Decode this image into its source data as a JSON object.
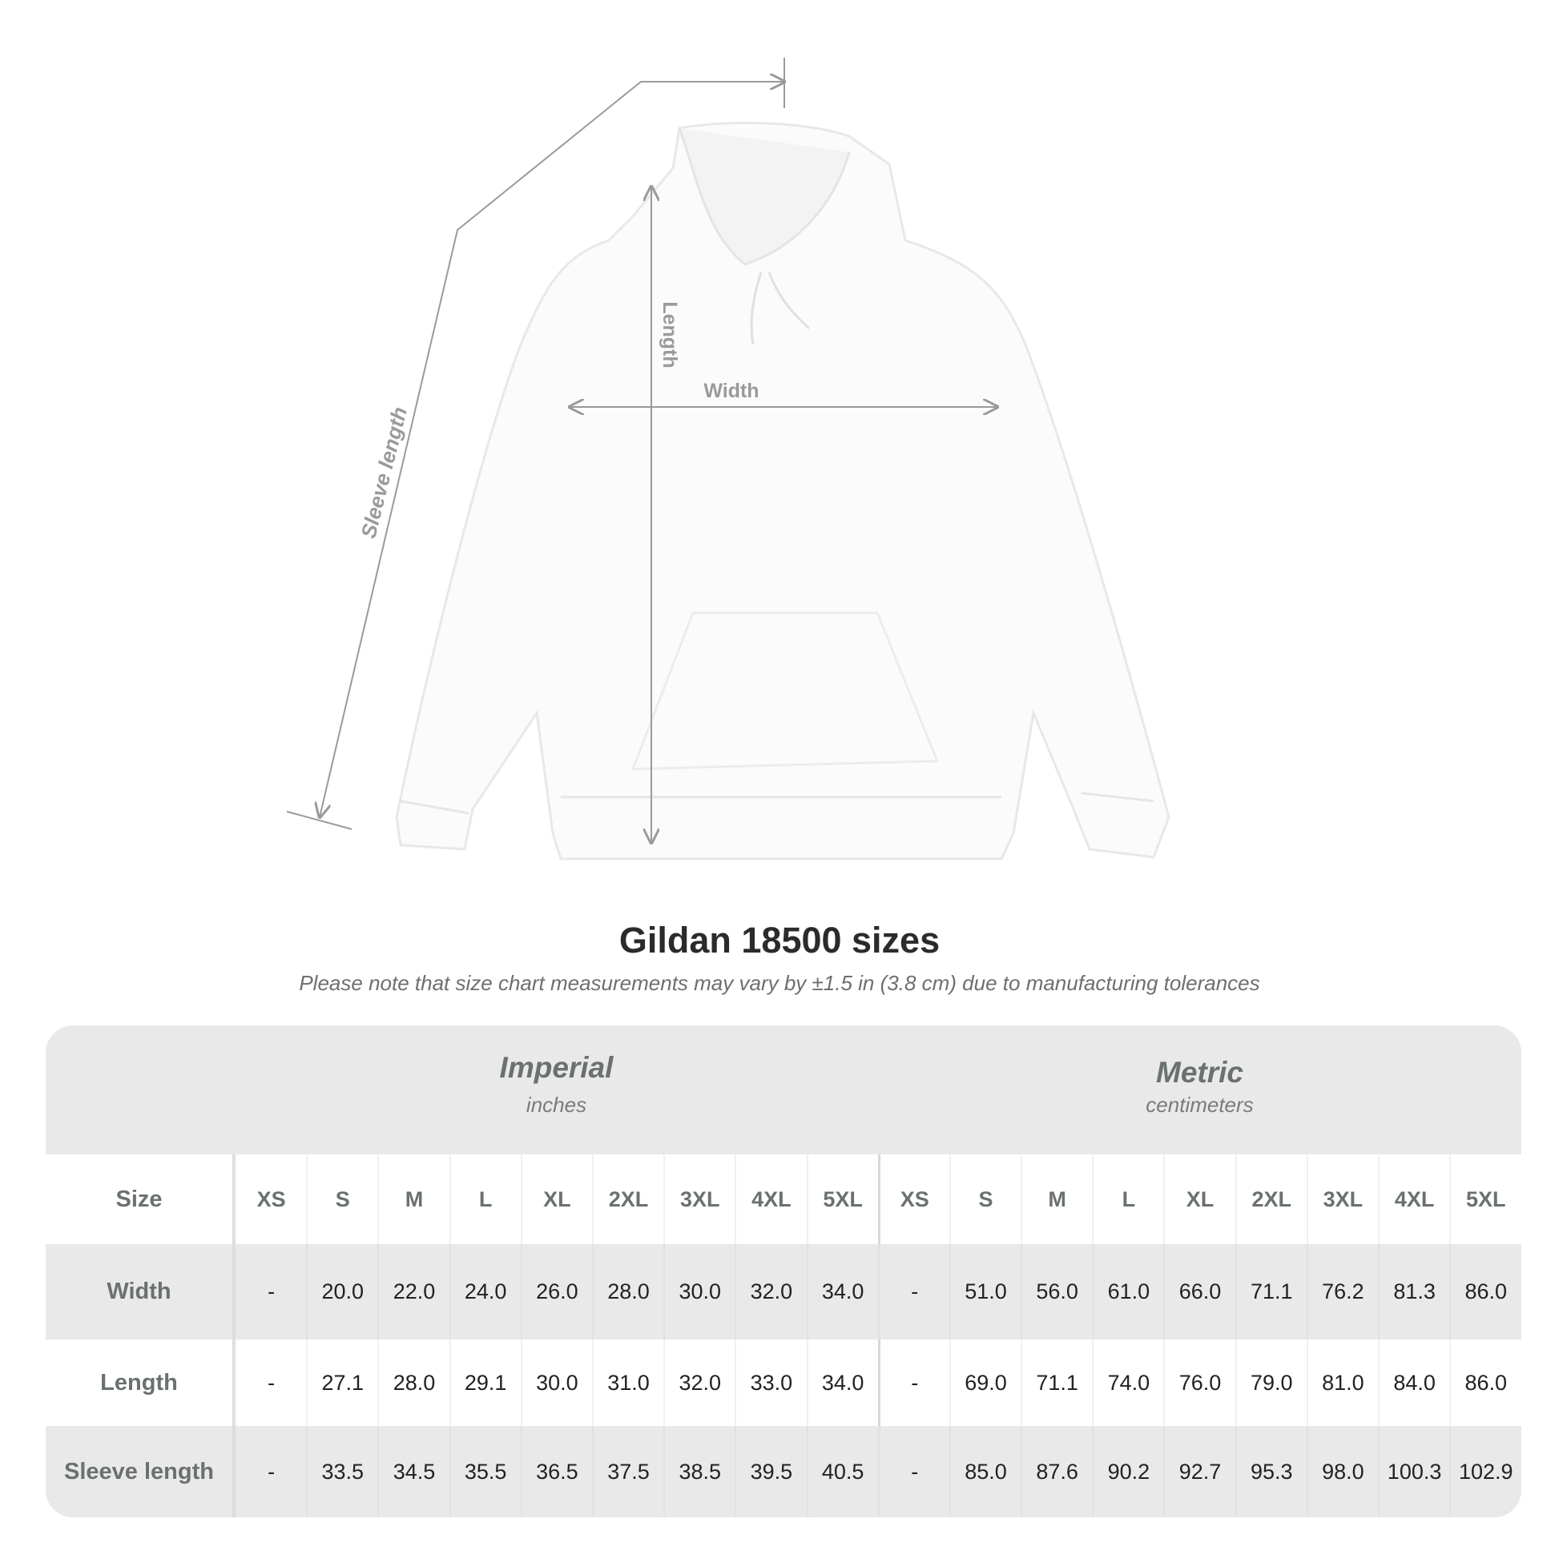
{
  "diagram": {
    "labels": {
      "length": "Length",
      "width": "Width",
      "sleeve": "Sleeve length"
    },
    "line_color": "#9a9a9a"
  },
  "title": "Gildan 18500 sizes",
  "note": "Please note that size chart measurements may vary by ±1.5 in (3.8 cm) due to manufacturing tolerances",
  "table": {
    "imperial": {
      "name": "Imperial",
      "unit": "inches"
    },
    "metric": {
      "name": "Metric",
      "unit": "centimeters"
    },
    "header_label": "Size",
    "sizes": [
      "XS",
      "S",
      "M",
      "L",
      "XL",
      "2XL",
      "3XL",
      "4XL",
      "5XL",
      "XS",
      "S",
      "M",
      "L",
      "XL",
      "2XL",
      "3XL",
      "4XL",
      "5XL"
    ],
    "rows": [
      {
        "label": "Width",
        "values": [
          "-",
          "20.0",
          "22.0",
          "24.0",
          "26.0",
          "28.0",
          "30.0",
          "32.0",
          "34.0",
          "-",
          "51.0",
          "56.0",
          "61.0",
          "66.0",
          "71.1",
          "76.2",
          "81.3",
          "86.0"
        ]
      },
      {
        "label": "Length",
        "values": [
          "-",
          "27.1",
          "28.0",
          "29.1",
          "30.0",
          "31.0",
          "32.0",
          "33.0",
          "34.0",
          "-",
          "69.0",
          "71.1",
          "74.0",
          "76.0",
          "79.0",
          "81.0",
          "84.0",
          "86.0"
        ]
      },
      {
        "label": "Sleeve length",
        "values": [
          "-",
          "33.5",
          "34.5",
          "35.5",
          "36.5",
          "37.5",
          "38.5",
          "39.5",
          "40.5",
          "-",
          "85.0",
          "87.6",
          "90.2",
          "92.7",
          "95.3",
          "98.0",
          "100.3",
          "102.9"
        ]
      }
    ]
  }
}
